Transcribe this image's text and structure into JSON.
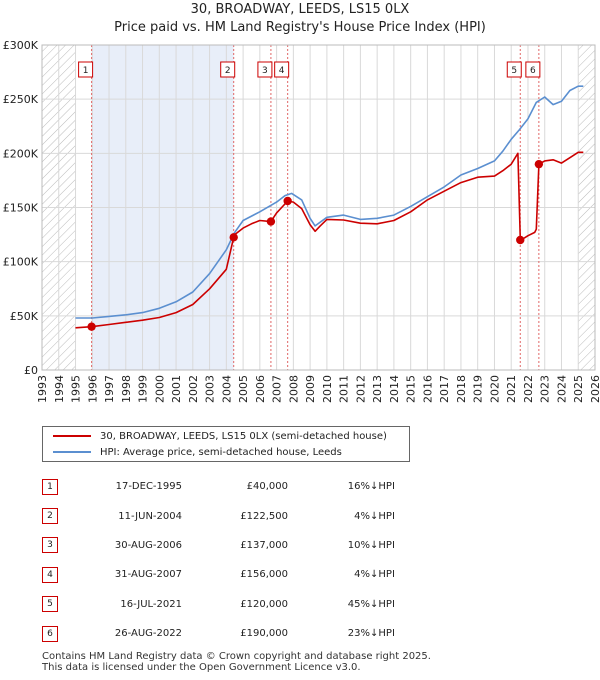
{
  "title_line1": "30, BROADWAY, LEEDS, LS15 0LX",
  "title_line2": "Price paid vs. HM Land Registry's House Price Index (HPI)",
  "colors": {
    "property": "#cc0000",
    "hpi": "#5b8fd0",
    "shade": "#e8eef9",
    "marker_line": "#e06666"
  },
  "legend": {
    "property_label": "30, BROADWAY, LEEDS, LS15 0LX (semi-detached house)",
    "hpi_label": "HPI: Average price, semi-detached house, Leeds"
  },
  "sales": [
    {
      "num": "1",
      "date": "17-DEC-1995",
      "price": "£40,000",
      "pct": "16%",
      "dir": "↓",
      "hpi": "HPI"
    },
    {
      "num": "2",
      "date": "11-JUN-2004",
      "price": "£122,500",
      "pct": "4%",
      "dir": "↓",
      "hpi": "HPI"
    },
    {
      "num": "3",
      "date": "30-AUG-2006",
      "price": "£137,000",
      "pct": "10%",
      "dir": "↓",
      "hpi": "HPI"
    },
    {
      "num": "4",
      "date": "31-AUG-2007",
      "price": "£156,000",
      "pct": "4%",
      "dir": "↓",
      "hpi": "HPI"
    },
    {
      "num": "5",
      "date": "16-JUL-2021",
      "price": "£120,000",
      "pct": "45%",
      "dir": "↓",
      "hpi": "HPI"
    },
    {
      "num": "6",
      "date": "26-AUG-2022",
      "price": "£190,000",
      "pct": "23%",
      "dir": "↓",
      "hpi": "HPI"
    }
  ],
  "footer_line1": "Contains HM Land Registry data © Crown copyright and database right 2025.",
  "footer_line2": "This data is licensed under the Open Government Licence v3.0.",
  "chart_data": {
    "type": "line",
    "title": "30, BROADWAY, LEEDS, LS15 0LX",
    "subtitle": "Price paid vs. HM Land Registry's House Price Index (HPI)",
    "xlabel": "",
    "ylabel": "",
    "xlim": [
      1993,
      2026
    ],
    "ylim": [
      0,
      300000
    ],
    "x_ticks": [
      1993,
      1994,
      1995,
      1996,
      1997,
      1998,
      1999,
      2000,
      2001,
      2002,
      2003,
      2004,
      2005,
      2006,
      2007,
      2008,
      2009,
      2010,
      2011,
      2012,
      2013,
      2014,
      2015,
      2016,
      2017,
      2018,
      2019,
      2020,
      2021,
      2022,
      2023,
      2024,
      2025,
      2026
    ],
    "y_ticks": [
      {
        "value": 0,
        "label": "£0"
      },
      {
        "value": 50000,
        "label": "£50K"
      },
      {
        "value": 100000,
        "label": "£100K"
      },
      {
        "value": 150000,
        "label": "£150K"
      },
      {
        "value": 200000,
        "label": "£200K"
      },
      {
        "value": 250000,
        "label": "£250K"
      },
      {
        "value": 300000,
        "label": "£300K"
      }
    ],
    "grid": true,
    "hatched_ranges": [
      [
        1993,
        1995.0
      ],
      [
        2025.0,
        2026
      ]
    ],
    "shaded_ranges": [
      [
        1995.96,
        2004.44
      ]
    ],
    "sale_markers": [
      {
        "label": "1",
        "x": 1995.96,
        "y": 40000
      },
      {
        "label": "2",
        "x": 2004.44,
        "y": 122500
      },
      {
        "label": "3",
        "x": 2006.66,
        "y": 137000
      },
      {
        "label": "4",
        "x": 2007.66,
        "y": 156000
      },
      {
        "label": "5",
        "x": 2021.54,
        "y": 120000
      },
      {
        "label": "6",
        "x": 2022.65,
        "y": 190000
      }
    ],
    "series": [
      {
        "name": "30, BROADWAY, LEEDS, LS15 0LX (semi-detached house)",
        "color": "#cc0000",
        "x": [
          1995.0,
          1995.96,
          1997,
          1998,
          1999,
          2000,
          2001,
          2002,
          2003,
          2004.0,
          2004.44,
          2004.5,
          2005,
          2005.5,
          2006.0,
          2006.66,
          2007,
          2007.66,
          2008,
          2008.5,
          2009.0,
          2009.3,
          2009.6,
          2010,
          2011,
          2012,
          2013,
          2014,
          2015,
          2016,
          2017,
          2018,
          2019,
          2020,
          2020.5,
          2021.0,
          2021.4,
          2021.54,
          2021.8,
          2022.0,
          2022.4,
          2022.5,
          2022.65,
          2023.0,
          2023.5,
          2024,
          2024.5,
          2025.0,
          2025.3
        ],
        "values": [
          39000,
          40000,
          42000,
          44000,
          46000,
          48500,
          53000,
          60500,
          75000,
          93000,
          122500,
          125000,
          131000,
          135000,
          138000,
          137000,
          145000,
          156000,
          155000,
          149000,
          134000,
          128000,
          133000,
          139000,
          138500,
          135500,
          135000,
          138000,
          146000,
          157000,
          165000,
          173000,
          178000,
          179000,
          184000,
          190000,
          200000,
          120000,
          122000,
          124000,
          127000,
          130000,
          190000,
          193000,
          194000,
          191000,
          196000,
          201000,
          201000
        ]
      },
      {
        "name": "HPI: Average price, semi-detached house, Leeds",
        "color": "#5b8fd0",
        "x": [
          1995.0,
          1996,
          1997,
          1998,
          1999,
          2000,
          2001,
          2002,
          2003,
          2004,
          2004.5,
          2005,
          2006,
          2007,
          2007.5,
          2007.9,
          2008.5,
          2009.0,
          2009.3,
          2010,
          2011,
          2012,
          2013,
          2014,
          2015,
          2016,
          2017,
          2018,
          2019,
          2020,
          2020.5,
          2021,
          2021.5,
          2022,
          2022.5,
          2023,
          2023.5,
          2024,
          2024.5,
          2025.0,
          2025.3
        ],
        "values": [
          48000,
          48000,
          49500,
          51000,
          53000,
          57000,
          63000,
          72000,
          89000,
          111000,
          127000,
          138000,
          146000,
          155000,
          161000,
          163000,
          157000,
          140000,
          133000,
          141000,
          143000,
          139000,
          140000,
          143000,
          151000,
          160000,
          169000,
          180000,
          186000,
          193000,
          202000,
          213000,
          222000,
          232000,
          247000,
          252000,
          245000,
          248000,
          258000,
          262000,
          262000
        ]
      }
    ]
  }
}
